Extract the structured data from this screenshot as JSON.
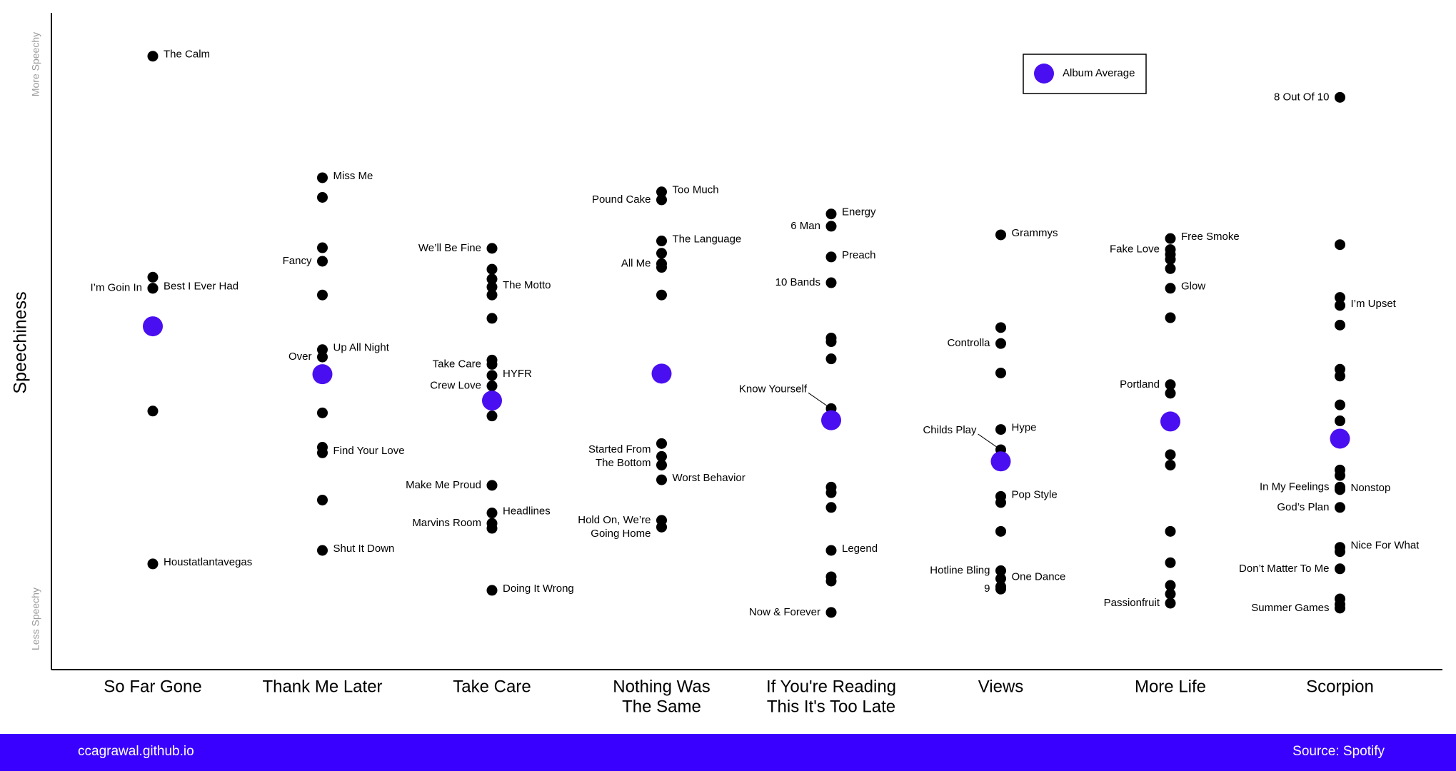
{
  "chart_data": {
    "type": "scatter",
    "ylabel": "Speechiness",
    "ylabel_top": "More Speechy",
    "ylabel_bottom": "Less Speechy",
    "legend": {
      "label": "Album Average",
      "placement": "top-right"
    },
    "colors": {
      "dot": "#000000",
      "average": "#4a0ff0",
      "footer": "#3a00ff",
      "axis": "#000000",
      "muted": "#999999"
    },
    "albums": [
      {
        "name": [
          "So Far Gone"
        ],
        "average": 0.515,
        "tracks": [
          {
            "y": 0.955,
            "label": "The Calm",
            "side": "right"
          },
          {
            "y": 0.595,
            "label": "",
            "side": "right"
          },
          {
            "y": 0.577,
            "label": "Best I Ever Had",
            "side": "right"
          },
          {
            "y": 0.577,
            "label": "I’m Goin In",
            "side": "left"
          },
          {
            "y": 0.377,
            "label": "",
            "side": "right"
          },
          {
            "y": 0.128,
            "label": "Houstatlantavegas",
            "side": "right"
          }
        ]
      },
      {
        "name": [
          "Thank Me Later"
        ],
        "average": 0.437,
        "tracks": [
          {
            "y": 0.757,
            "label": "Miss Me",
            "side": "right"
          },
          {
            "y": 0.725,
            "label": "",
            "side": "right"
          },
          {
            "y": 0.643,
            "label": "",
            "side": "right"
          },
          {
            "y": 0.621,
            "label": "Fancy",
            "side": "left"
          },
          {
            "y": 0.566,
            "label": "",
            "side": "right"
          },
          {
            "y": 0.477,
            "label": "Up All Night",
            "side": "right"
          },
          {
            "y": 0.465,
            "label": "Over",
            "side": "left"
          },
          {
            "y": 0.374,
            "label": "",
            "side": "right"
          },
          {
            "y": 0.318,
            "label": "",
            "side": "right"
          },
          {
            "y": 0.309,
            "label": "Find Your Love",
            "side": "right"
          },
          {
            "y": 0.232,
            "label": "",
            "side": "right"
          },
          {
            "y": 0.15,
            "label": "Shut It Down",
            "side": "right"
          }
        ]
      },
      {
        "name": [
          "Take Care"
        ],
        "average": 0.394,
        "tracks": [
          {
            "y": 0.642,
            "label": "We’ll Be Fine",
            "side": "left"
          },
          {
            "y": 0.608,
            "label": "",
            "side": "right"
          },
          {
            "y": 0.592,
            "label": "",
            "side": "right"
          },
          {
            "y": 0.579,
            "label": "The Motto",
            "side": "right"
          },
          {
            "y": 0.566,
            "label": "",
            "side": "right"
          },
          {
            "y": 0.528,
            "label": "",
            "side": "right"
          },
          {
            "y": 0.46,
            "label": "",
            "side": "right"
          },
          {
            "y": 0.453,
            "label": "Take Care",
            "side": "left"
          },
          {
            "y": 0.435,
            "label": "HYFR",
            "side": "right"
          },
          {
            "y": 0.418,
            "label": "Crew Love",
            "side": "left"
          },
          {
            "y": 0.369,
            "label": "",
            "side": "right"
          },
          {
            "y": 0.256,
            "label": "Make Me Proud",
            "side": "left"
          },
          {
            "y": 0.211,
            "label": "Headlines",
            "side": "right"
          },
          {
            "y": 0.194,
            "label": "Marvins Room",
            "side": "left"
          },
          {
            "y": 0.186,
            "label": "",
            "side": "right"
          },
          {
            "y": 0.085,
            "label": "Doing It Wrong",
            "side": "right"
          }
        ]
      },
      {
        "name": [
          "Nothing Was",
          "The Same"
        ],
        "average": 0.438,
        "tracks": [
          {
            "y": 0.734,
            "label": "Too Much",
            "side": "right"
          },
          {
            "y": 0.721,
            "label": "Pound Cake",
            "side": "left"
          },
          {
            "y": 0.654,
            "label": "The Language",
            "side": "right"
          },
          {
            "y": 0.634,
            "label": "",
            "side": "right"
          },
          {
            "y": 0.617,
            "label": "All Me",
            "side": "left"
          },
          {
            "y": 0.611,
            "label": "",
            "side": "right"
          },
          {
            "y": 0.566,
            "label": "",
            "side": "right"
          },
          {
            "y": 0.324,
            "label": "",
            "side": "right"
          },
          {
            "y": 0.303,
            "label": "Started From\nThe Bottom",
            "side": "left"
          },
          {
            "y": 0.289,
            "label": "",
            "side": "right"
          },
          {
            "y": 0.265,
            "label": "Worst Behavior",
            "side": "right"
          },
          {
            "y": 0.199,
            "label": "",
            "side": "right"
          },
          {
            "y": 0.188,
            "label": "Hold On, We’re\nGoing Home",
            "side": "left"
          }
        ]
      },
      {
        "name": [
          "If You're Reading",
          "This It's Too Late"
        ],
        "average": 0.362,
        "tracks": [
          {
            "y": 0.698,
            "label": "Energy",
            "side": "right"
          },
          {
            "y": 0.678,
            "label": "6 Man",
            "side": "left"
          },
          {
            "y": 0.628,
            "label": "Preach",
            "side": "right"
          },
          {
            "y": 0.586,
            "label": "10 Bands",
            "side": "left"
          },
          {
            "y": 0.496,
            "label": "",
            "side": "right"
          },
          {
            "y": 0.49,
            "label": "",
            "side": "right"
          },
          {
            "y": 0.462,
            "label": "",
            "side": "right"
          },
          {
            "y": 0.381,
            "label": "Know Yourself",
            "side": "left-leader"
          },
          {
            "y": 0.253,
            "label": "",
            "side": "right"
          },
          {
            "y": 0.244,
            "label": "",
            "side": "right"
          },
          {
            "y": 0.22,
            "label": "",
            "side": "right"
          },
          {
            "y": 0.15,
            "label": "Legend",
            "side": "right"
          },
          {
            "y": 0.107,
            "label": "",
            "side": "right"
          },
          {
            "y": 0.1,
            "label": "",
            "side": "right"
          },
          {
            "y": 0.049,
            "label": "Now & Forever",
            "side": "left"
          }
        ]
      },
      {
        "name": [
          "Views"
        ],
        "average": 0.295,
        "tracks": [
          {
            "y": 0.664,
            "label": "Grammys",
            "side": "right"
          },
          {
            "y": 0.513,
            "label": "",
            "side": "right"
          },
          {
            "y": 0.487,
            "label": "Controlla",
            "side": "left"
          },
          {
            "y": 0.439,
            "label": "",
            "side": "right"
          },
          {
            "y": 0.347,
            "label": "Hype",
            "side": "right"
          },
          {
            "y": 0.314,
            "label": "Childs Play",
            "side": "left-leader"
          },
          {
            "y": 0.238,
            "label": "Pop Style",
            "side": "right"
          },
          {
            "y": 0.228,
            "label": "",
            "side": "right"
          },
          {
            "y": 0.181,
            "label": "",
            "side": "right"
          },
          {
            "y": 0.117,
            "label": "Hotline Bling",
            "side": "left"
          },
          {
            "y": 0.104,
            "label": "One Dance",
            "side": "right"
          },
          {
            "y": 0.091,
            "label": "",
            "side": "right"
          },
          {
            "y": 0.087,
            "label": "9",
            "side": "left"
          }
        ]
      },
      {
        "name": [
          "More Life"
        ],
        "average": 0.36,
        "tracks": [
          {
            "y": 0.658,
            "label": "Free Smoke",
            "side": "right"
          },
          {
            "y": 0.64,
            "label": "Fake Love",
            "side": "left"
          },
          {
            "y": 0.632,
            "label": "",
            "side": "right"
          },
          {
            "y": 0.624,
            "label": "",
            "side": "right"
          },
          {
            "y": 0.609,
            "label": "",
            "side": "right"
          },
          {
            "y": 0.577,
            "label": "Glow",
            "side": "right"
          },
          {
            "y": 0.529,
            "label": "",
            "side": "right"
          },
          {
            "y": 0.42,
            "label": "Portland",
            "side": "left"
          },
          {
            "y": 0.406,
            "label": "",
            "side": "right"
          },
          {
            "y": 0.306,
            "label": "",
            "side": "right"
          },
          {
            "y": 0.289,
            "label": "",
            "side": "right"
          },
          {
            "y": 0.181,
            "label": "",
            "side": "right"
          },
          {
            "y": 0.13,
            "label": "",
            "side": "right"
          },
          {
            "y": 0.093,
            "label": "",
            "side": "right"
          },
          {
            "y": 0.079,
            "label": "",
            "side": "right"
          },
          {
            "y": 0.064,
            "label": "Passionfruit",
            "side": "left"
          }
        ]
      },
      {
        "name": [
          "Scorpion"
        ],
        "average": 0.332,
        "tracks": [
          {
            "y": 0.888,
            "label": "8 Out Of 10",
            "side": "left"
          },
          {
            "y": 0.648,
            "label": "",
            "side": "right"
          },
          {
            "y": 0.562,
            "label": "",
            "side": "right"
          },
          {
            "y": 0.549,
            "label": "I’m Upset",
            "side": "right"
          },
          {
            "y": 0.517,
            "label": "",
            "side": "right"
          },
          {
            "y": 0.445,
            "label": "",
            "side": "right"
          },
          {
            "y": 0.434,
            "label": "",
            "side": "right"
          },
          {
            "y": 0.387,
            "label": "",
            "side": "right"
          },
          {
            "y": 0.361,
            "label": "",
            "side": "right"
          },
          {
            "y": 0.253,
            "label": "In My Feelings",
            "side": "left"
          },
          {
            "y": 0.249,
            "label": "Nonstop",
            "side": "right"
          },
          {
            "y": 0.22,
            "label": "God’s Plan",
            "side": "left"
          },
          {
            "y": 0.281,
            "label": "",
            "side": "right"
          },
          {
            "y": 0.272,
            "label": "",
            "side": "right"
          },
          {
            "y": 0.155,
            "label": "Nice For What",
            "side": "right"
          },
          {
            "y": 0.148,
            "label": "",
            "side": "right"
          },
          {
            "y": 0.12,
            "label": "Don’t Matter To Me",
            "side": "left"
          },
          {
            "y": 0.071,
            "label": "",
            "side": "right"
          },
          {
            "y": 0.062,
            "label": "",
            "side": "right"
          },
          {
            "y": 0.056,
            "label": "Summer Games",
            "side": "left"
          }
        ]
      }
    ]
  },
  "footer": {
    "left_text": "ccagrawal.github.io",
    "right_text": "Source: Spotify"
  }
}
